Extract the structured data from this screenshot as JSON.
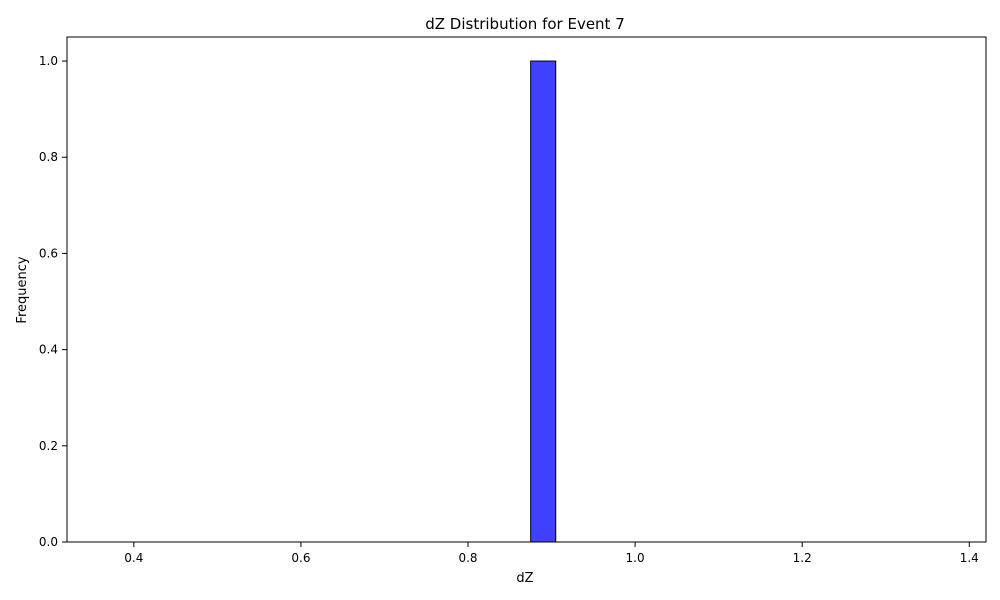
{
  "chart_data": {
    "type": "bar",
    "title": "dZ Distribution for Event 7",
    "xlabel": "dZ",
    "ylabel": "Frequency",
    "xlim": [
      0.32,
      1.42
    ],
    "ylim": [
      0.0,
      1.05
    ],
    "x_ticks": [
      0.4,
      0.6,
      0.8,
      1.0,
      1.2,
      1.4
    ],
    "x_tick_labels": [
      "0.4",
      "0.6",
      "0.8",
      "1.0",
      "1.2",
      "1.4"
    ],
    "y_ticks": [
      0.0,
      0.2,
      0.4,
      0.6,
      0.8,
      1.0
    ],
    "y_tick_labels": [
      "0.0",
      "0.2",
      "0.4",
      "0.6",
      "0.8",
      "1.0"
    ],
    "bins": [
      {
        "x0": 0.875,
        "x1": 0.905,
        "value": 1.0
      }
    ],
    "baseline": {
      "x0": 0.375,
      "x1": 1.375,
      "value": 0.0
    },
    "grid": false,
    "bar_color": "#4040ff",
    "edge_color": "#000000"
  }
}
